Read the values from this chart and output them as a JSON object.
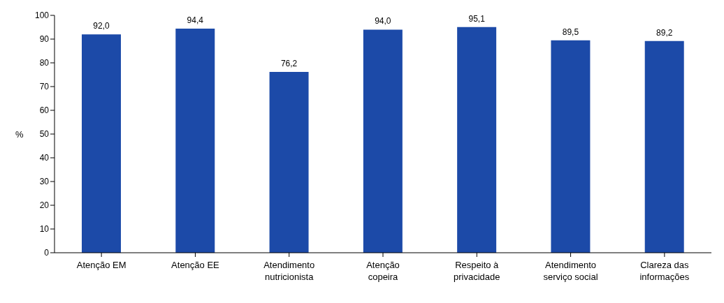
{
  "chart_data": {
    "type": "bar",
    "ylabel": "%",
    "categories": [
      "Atenção EM",
      "Atenção EE",
      "Atendimento\nnutricionista",
      "Atenção\ncopeira",
      "Respeito à\nprivacidade",
      "Atendimento\nserviço social",
      "Clareza das\ninformações"
    ],
    "values": [
      92.0,
      94.4,
      76.2,
      94.0,
      95.1,
      89.5,
      89.2
    ],
    "value_labels": [
      "92,0",
      "94,4",
      "76,2",
      "94,0",
      "95,1",
      "89,5",
      "89,2"
    ],
    "color": "#1c4aa8",
    "ylim": [
      0,
      100
    ],
    "yticks": [
      0,
      10,
      20,
      30,
      40,
      50,
      60,
      70,
      80,
      90,
      100
    ],
    "grid": false,
    "legend": false
  }
}
